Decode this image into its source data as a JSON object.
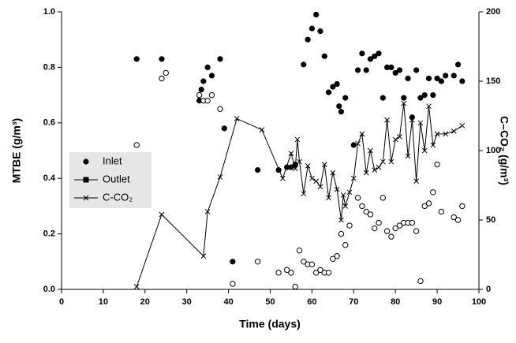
{
  "chart_data": {
    "type": "scatter",
    "x_label": "Time (days)",
    "y_label": "MTBE (g/m³)",
    "y2_label": "C–CO₂ (g/m³)",
    "xlim": [
      0,
      100
    ],
    "xticks": [
      0,
      10,
      20,
      30,
      40,
      50,
      60,
      70,
      80,
      90,
      100
    ],
    "ylim": [
      0,
      1
    ],
    "yticks": [
      {
        "value": 0,
        "label": "0.0"
      },
      {
        "value": 0.2,
        "label": "0.2"
      },
      {
        "value": 0.4,
        "label": "0.4"
      },
      {
        "value": 0.6,
        "label": "0.6"
      },
      {
        "value": 0.8,
        "label": "0.8"
      },
      {
        "value": 1,
        "label": "1.0"
      }
    ],
    "y2lim": [
      0,
      200
    ],
    "y2ticks": [
      0,
      50,
      100,
      150,
      200
    ],
    "legend": "left",
    "series": [
      {
        "name": "Inlet",
        "color": "#000000",
        "marker": "circle",
        "legend_symbol": "circle",
        "line": false,
        "x": [
          18,
          24,
          33,
          33.5,
          34,
          35,
          36,
          38,
          39,
          41,
          47,
          52,
          54,
          55,
          56,
          58,
          59,
          60,
          61,
          62,
          63,
          64,
          65,
          66,
          66.5,
          67,
          68,
          70,
          71,
          72,
          73,
          74,
          75,
          76,
          77,
          78,
          79,
          80,
          81,
          82,
          83,
          84,
          85,
          86,
          87,
          88,
          89,
          90,
          91,
          92,
          94,
          95,
          96
        ],
        "values": [
          0.83,
          0.83,
          0.68,
          0.72,
          0.75,
          0.8,
          0.77,
          0.83,
          0.58,
          0.1,
          0.43,
          0.43,
          0.44,
          0.44,
          0.45,
          0.81,
          0.9,
          0.94,
          0.99,
          0.93,
          0.84,
          0.71,
          0.73,
          0.74,
          0.66,
          0.64,
          0.69,
          0.52,
          0.79,
          0.85,
          0.79,
          0.83,
          0.84,
          0.85,
          0.69,
          0.8,
          0.8,
          0.78,
          0.79,
          0.69,
          0.76,
          0.62,
          0.79,
          0.69,
          0.7,
          0.76,
          0.7,
          0.76,
          0.75,
          0.77,
          0.77,
          0.81,
          0.75
        ]
      },
      {
        "name": "Outlet",
        "color": "#000000",
        "marker": "open-circle",
        "legend_symbol": "square-line",
        "line": false,
        "x": [
          18,
          24,
          25,
          33,
          34,
          35,
          36,
          38,
          41,
          47,
          52,
          54,
          55,
          56,
          57,
          58,
          59,
          60,
          61,
          62,
          63,
          64,
          65,
          66,
          67,
          68,
          69,
          71,
          72,
          73,
          74,
          75,
          76,
          77,
          78,
          79,
          80,
          81,
          82,
          83,
          84,
          85,
          86,
          87,
          88,
          89,
          90,
          91,
          94,
          95,
          96
        ],
        "values": [
          0.52,
          0.76,
          0.78,
          0.7,
          0.68,
          0.68,
          0.7,
          0.65,
          0.02,
          0.1,
          0.06,
          0.07,
          0.06,
          0.01,
          0.14,
          0.1,
          0.09,
          0.09,
          0.06,
          0.07,
          0.06,
          0.06,
          0.11,
          0.12,
          0.2,
          0.16,
          0.23,
          0.33,
          0.3,
          0.28,
          0.27,
          0.22,
          0.24,
          0.33,
          0.21,
          0.19,
          0.22,
          0.23,
          0.24,
          0.24,
          0.24,
          0.21,
          0.03,
          0.3,
          0.31,
          0.35,
          0.45,
          0.28,
          0.26,
          0.25,
          0.3
        ]
      },
      {
        "name": "C-CO₂",
        "color": "#000000",
        "marker": "x",
        "legend_symbol": "x-line",
        "line": true,
        "axis": "y2",
        "x": [
          18,
          24,
          34,
          35,
          38,
          42,
          48,
          53,
          55,
          56,
          56.5,
          57,
          58,
          59,
          60,
          61,
          62,
          63,
          64,
          65,
          66,
          67,
          67.5,
          68,
          69,
          70,
          71,
          72,
          73,
          74,
          75,
          76,
          77,
          78,
          79,
          80,
          81,
          82,
          83,
          84,
          85,
          86,
          87,
          88,
          89,
          90,
          92,
          94,
          96
        ],
        "values": [
          2,
          54,
          24,
          56,
          81,
          123,
          115,
          80,
          98,
          87,
          108,
          92,
          69,
          89,
          80,
          78,
          74,
          90,
          66,
          84,
          72,
          50,
          68,
          60,
          70,
          80,
          105,
          112,
          84,
          100,
          86,
          88,
          92,
          122,
          92,
          108,
          110,
          134,
          96,
          122,
          78,
          120,
          100,
          132,
          104,
          112,
          112,
          114,
          118
        ]
      }
    ]
  }
}
